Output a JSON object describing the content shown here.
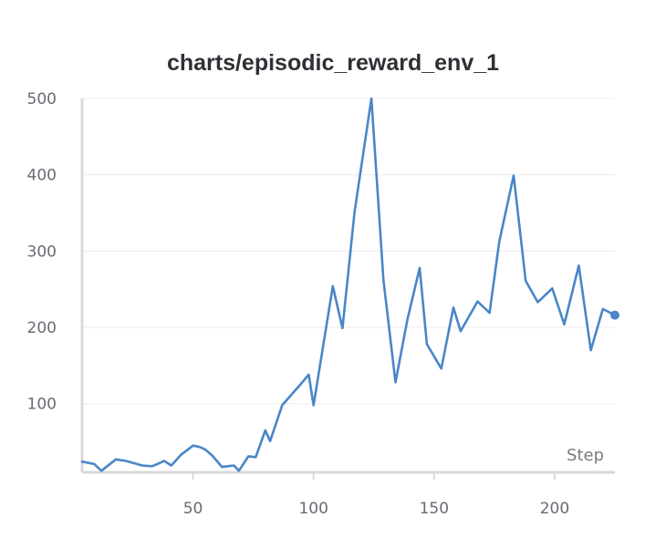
{
  "chart_data": {
    "type": "line",
    "title": "charts/episodic_reward_env_1",
    "xlabel": "Step",
    "ylabel": "",
    "xlim": [
      4,
      225
    ],
    "ylim": [
      10,
      500
    ],
    "xticks": [
      50,
      100,
      150,
      200
    ],
    "yticks": [
      100,
      200,
      300,
      400,
      500
    ],
    "grid": "horizontal",
    "colors": {
      "line": "#4a86c8",
      "grid": "#ececec",
      "axis": "#d8d8d8"
    },
    "series": [
      {
        "x": [
          4,
          9,
          12,
          18,
          22,
          29,
          33,
          36,
          38,
          41,
          45,
          50,
          53,
          55,
          58,
          62,
          67,
          69,
          73,
          76,
          80,
          82,
          87,
          94,
          98,
          100,
          108,
          112,
          117,
          124,
          129,
          134,
          139,
          144,
          147,
          153,
          158,
          161,
          168,
          173,
          177,
          183,
          188,
          193,
          199,
          204,
          210,
          215,
          220,
          225
        ],
        "y": [
          24,
          21,
          12,
          27,
          25,
          19,
          18,
          22,
          25,
          19,
          33,
          45,
          43,
          40,
          32,
          17,
          19,
          12,
          31,
          30,
          65,
          51,
          98,
          123,
          138,
          98,
          254,
          199,
          351,
          500,
          262,
          128,
          211,
          278,
          178,
          146,
          226,
          195,
          234,
          219,
          312,
          399,
          261,
          233,
          251,
          204,
          281,
          170,
          224,
          216
        ]
      }
    ]
  }
}
